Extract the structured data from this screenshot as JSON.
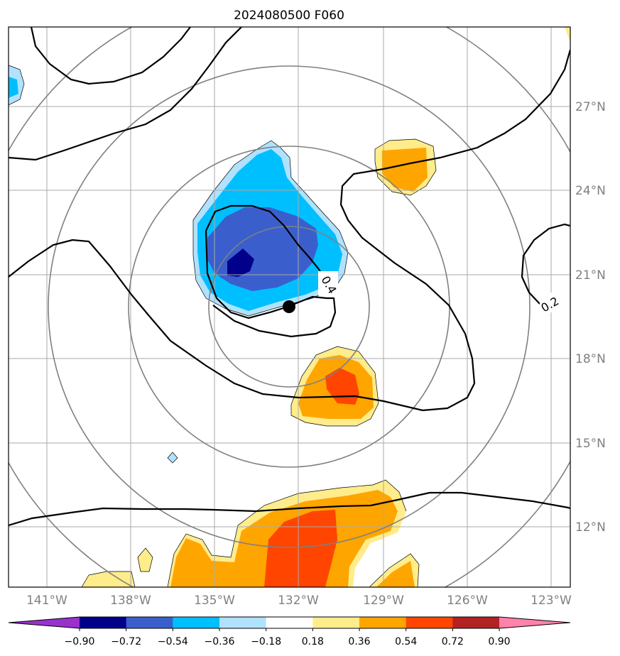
{
  "chart_data": {
    "type": "map-contour",
    "title": "2024080500 F060",
    "lon_ticks": [
      "141°W",
      "138°W",
      "135°W",
      "132°W",
      "129°W",
      "126°W",
      "123°W"
    ],
    "lat_ticks": [
      "12°N",
      "15°N",
      "18°N",
      "21°N",
      "24°N",
      "27°N"
    ],
    "colorbar": {
      "labels": [
        "−0.90",
        "−0.72",
        "−0.54",
        "−0.36",
        "−0.18",
        "0.18",
        "0.36",
        "0.54",
        "0.72",
        "0.90"
      ],
      "levels": [
        -0.9,
        -0.72,
        -0.54,
        -0.36,
        -0.18,
        0.18,
        0.36,
        0.54,
        0.72,
        0.9
      ],
      "colors": [
        "#9932cc",
        "#00008b",
        "#3a5fcd",
        "#00bfff",
        "#b0e2ff",
        "#ffffff",
        "#ffec8b",
        "#ffa500",
        "#ff4500",
        "#b22222",
        "#ff82ab"
      ],
      "extend": "both"
    },
    "contour_labels": [
      "0.4",
      "0.2"
    ],
    "storm_center": {
      "lon": -132.2,
      "lat": 19.9
    },
    "range_rings": "concentric circles around storm center",
    "grid": true
  }
}
